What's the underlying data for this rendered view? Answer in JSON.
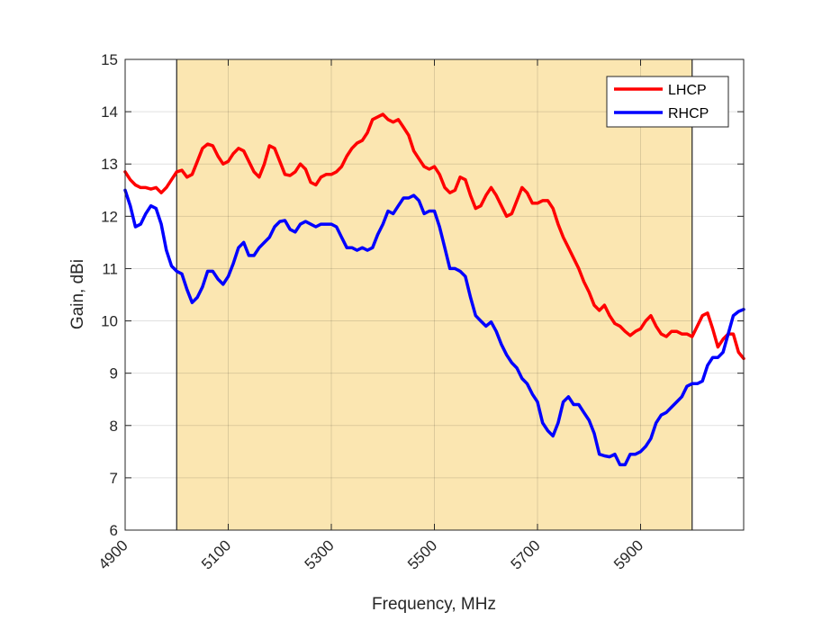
{
  "chart_data": {
    "type": "line",
    "xlabel": "Frequency, MHz",
    "ylabel": "Gain, dBi",
    "xlim": [
      4900,
      6100
    ],
    "ylim": [
      6,
      15
    ],
    "xticks": [
      4900,
      5100,
      5300,
      5500,
      5700,
      5900
    ],
    "xtick_labels": [
      "4900",
      "5100",
      "5300",
      "5500",
      "5700",
      "5900"
    ],
    "yticks": [
      6,
      7,
      8,
      9,
      10,
      11,
      12,
      13,
      14,
      15
    ],
    "ytick_labels": [
      "6",
      "7",
      "8",
      "9",
      "10",
      "11",
      "12",
      "13",
      "14",
      "15"
    ],
    "grid": true,
    "legend_position": "top-right",
    "highlight_band": {
      "x_start": 5000,
      "x_end": 6000,
      "color": "#fbe6b1"
    },
    "series": [
      {
        "name": "LHCP",
        "color": "#ff0000",
        "x": [
          4900,
          4910,
          4920,
          4930,
          4940,
          4950,
          4960,
          4970,
          4980,
          4990,
          5000,
          5010,
          5020,
          5030,
          5040,
          5050,
          5060,
          5070,
          5080,
          5090,
          5100,
          5110,
          5120,
          5130,
          5140,
          5150,
          5160,
          5170,
          5180,
          5190,
          5200,
          5210,
          5220,
          5230,
          5240,
          5250,
          5260,
          5270,
          5280,
          5290,
          5300,
          5310,
          5320,
          5330,
          5340,
          5350,
          5360,
          5370,
          5380,
          5390,
          5400,
          5410,
          5420,
          5430,
          5440,
          5450,
          5460,
          5470,
          5480,
          5490,
          5500,
          5510,
          5520,
          5530,
          5540,
          5550,
          5560,
          5570,
          5580,
          5590,
          5600,
          5610,
          5620,
          5630,
          5640,
          5650,
          5660,
          5670,
          5680,
          5690,
          5700,
          5710,
          5720,
          5730,
          5740,
          5750,
          5760,
          5770,
          5780,
          5790,
          5800,
          5810,
          5820,
          5830,
          5840,
          5850,
          5860,
          5870,
          5880,
          5890,
          5900,
          5910,
          5920,
          5930,
          5940,
          5950,
          5960,
          5970,
          5980,
          5990,
          6000,
          6010,
          6020,
          6030,
          6040,
          6050,
          6060,
          6070,
          6080,
          6090,
          6100
        ],
        "values": [
          12.85,
          12.7,
          12.6,
          12.55,
          12.55,
          12.52,
          12.55,
          12.45,
          12.55,
          12.7,
          12.85,
          12.88,
          12.75,
          12.8,
          13.05,
          13.3,
          13.38,
          13.35,
          13.15,
          13.0,
          13.05,
          13.2,
          13.3,
          13.25,
          13.05,
          12.85,
          12.75,
          13.0,
          13.35,
          13.3,
          13.05,
          12.8,
          12.78,
          12.85,
          13.0,
          12.9,
          12.65,
          12.6,
          12.75,
          12.8,
          12.8,
          12.85,
          12.95,
          13.15,
          13.3,
          13.4,
          13.45,
          13.6,
          13.85,
          13.9,
          13.95,
          13.85,
          13.8,
          13.85,
          13.7,
          13.55,
          13.25,
          13.1,
          12.95,
          12.9,
          12.95,
          12.8,
          12.55,
          12.45,
          12.5,
          12.75,
          12.7,
          12.4,
          12.15,
          12.2,
          12.4,
          12.55,
          12.4,
          12.2,
          12.0,
          12.05,
          12.3,
          12.55,
          12.45,
          12.25,
          12.25,
          12.3,
          12.3,
          12.15,
          11.85,
          11.6,
          11.4,
          11.2,
          11.0,
          10.75,
          10.55,
          10.3,
          10.2,
          10.3,
          10.1,
          9.95,
          9.9,
          9.8,
          9.72,
          9.8,
          9.85,
          10.0,
          10.1,
          9.9,
          9.75,
          9.7,
          9.8,
          9.8,
          9.75,
          9.75,
          9.7,
          9.9,
          10.1,
          10.15,
          9.85,
          9.5,
          9.65,
          9.75,
          9.75,
          9.4,
          9.28
        ]
      },
      {
        "name": "RHCP",
        "color": "#0000ff",
        "x": [
          4900,
          4910,
          4920,
          4930,
          4940,
          4950,
          4960,
          4970,
          4980,
          4990,
          5000,
          5010,
          5020,
          5030,
          5040,
          5050,
          5060,
          5070,
          5080,
          5090,
          5100,
          5110,
          5120,
          5130,
          5140,
          5150,
          5160,
          5170,
          5180,
          5190,
          5200,
          5210,
          5220,
          5230,
          5240,
          5250,
          5260,
          5270,
          5280,
          5290,
          5300,
          5310,
          5320,
          5330,
          5340,
          5350,
          5360,
          5370,
          5380,
          5390,
          5400,
          5410,
          5420,
          5430,
          5440,
          5450,
          5460,
          5470,
          5480,
          5490,
          5500,
          5510,
          5520,
          5530,
          5540,
          5550,
          5560,
          5570,
          5580,
          5590,
          5600,
          5610,
          5620,
          5630,
          5640,
          5650,
          5660,
          5670,
          5680,
          5690,
          5700,
          5710,
          5720,
          5730,
          5740,
          5750,
          5760,
          5770,
          5780,
          5790,
          5800,
          5810,
          5820,
          5830,
          5840,
          5850,
          5860,
          5870,
          5880,
          5890,
          5900,
          5910,
          5920,
          5930,
          5940,
          5950,
          5960,
          5970,
          5980,
          5990,
          6000,
          6010,
          6020,
          6030,
          6040,
          6050,
          6060,
          6070,
          6080,
          6090,
          6100
        ],
        "values": [
          12.5,
          12.2,
          11.8,
          11.85,
          12.05,
          12.2,
          12.15,
          11.85,
          11.35,
          11.05,
          10.95,
          10.9,
          10.6,
          10.35,
          10.45,
          10.65,
          10.95,
          10.95,
          10.8,
          10.7,
          10.85,
          11.1,
          11.4,
          11.5,
          11.25,
          11.25,
          11.4,
          11.5,
          11.6,
          11.8,
          11.9,
          11.92,
          11.75,
          11.7,
          11.85,
          11.9,
          11.85,
          11.8,
          11.85,
          11.85,
          11.85,
          11.8,
          11.6,
          11.4,
          11.4,
          11.35,
          11.4,
          11.35,
          11.4,
          11.65,
          11.85,
          12.1,
          12.05,
          12.2,
          12.35,
          12.35,
          12.4,
          12.3,
          12.05,
          12.1,
          12.1,
          11.8,
          11.4,
          11.0,
          11.0,
          10.95,
          10.85,
          10.45,
          10.1,
          10.0,
          9.9,
          9.98,
          9.8,
          9.55,
          9.35,
          9.2,
          9.1,
          8.9,
          8.8,
          8.6,
          8.45,
          8.05,
          7.9,
          7.8,
          8.05,
          8.45,
          8.55,
          8.4,
          8.4,
          8.25,
          8.1,
          7.85,
          7.45,
          7.42,
          7.4,
          7.45,
          7.25,
          7.25,
          7.45,
          7.45,
          7.5,
          7.6,
          7.75,
          8.05,
          8.2,
          8.25,
          8.35,
          8.45,
          8.55,
          8.75,
          8.8,
          8.8,
          8.85,
          9.15,
          9.3,
          9.3,
          9.4,
          9.75,
          10.1,
          10.18,
          10.22
        ]
      }
    ]
  }
}
